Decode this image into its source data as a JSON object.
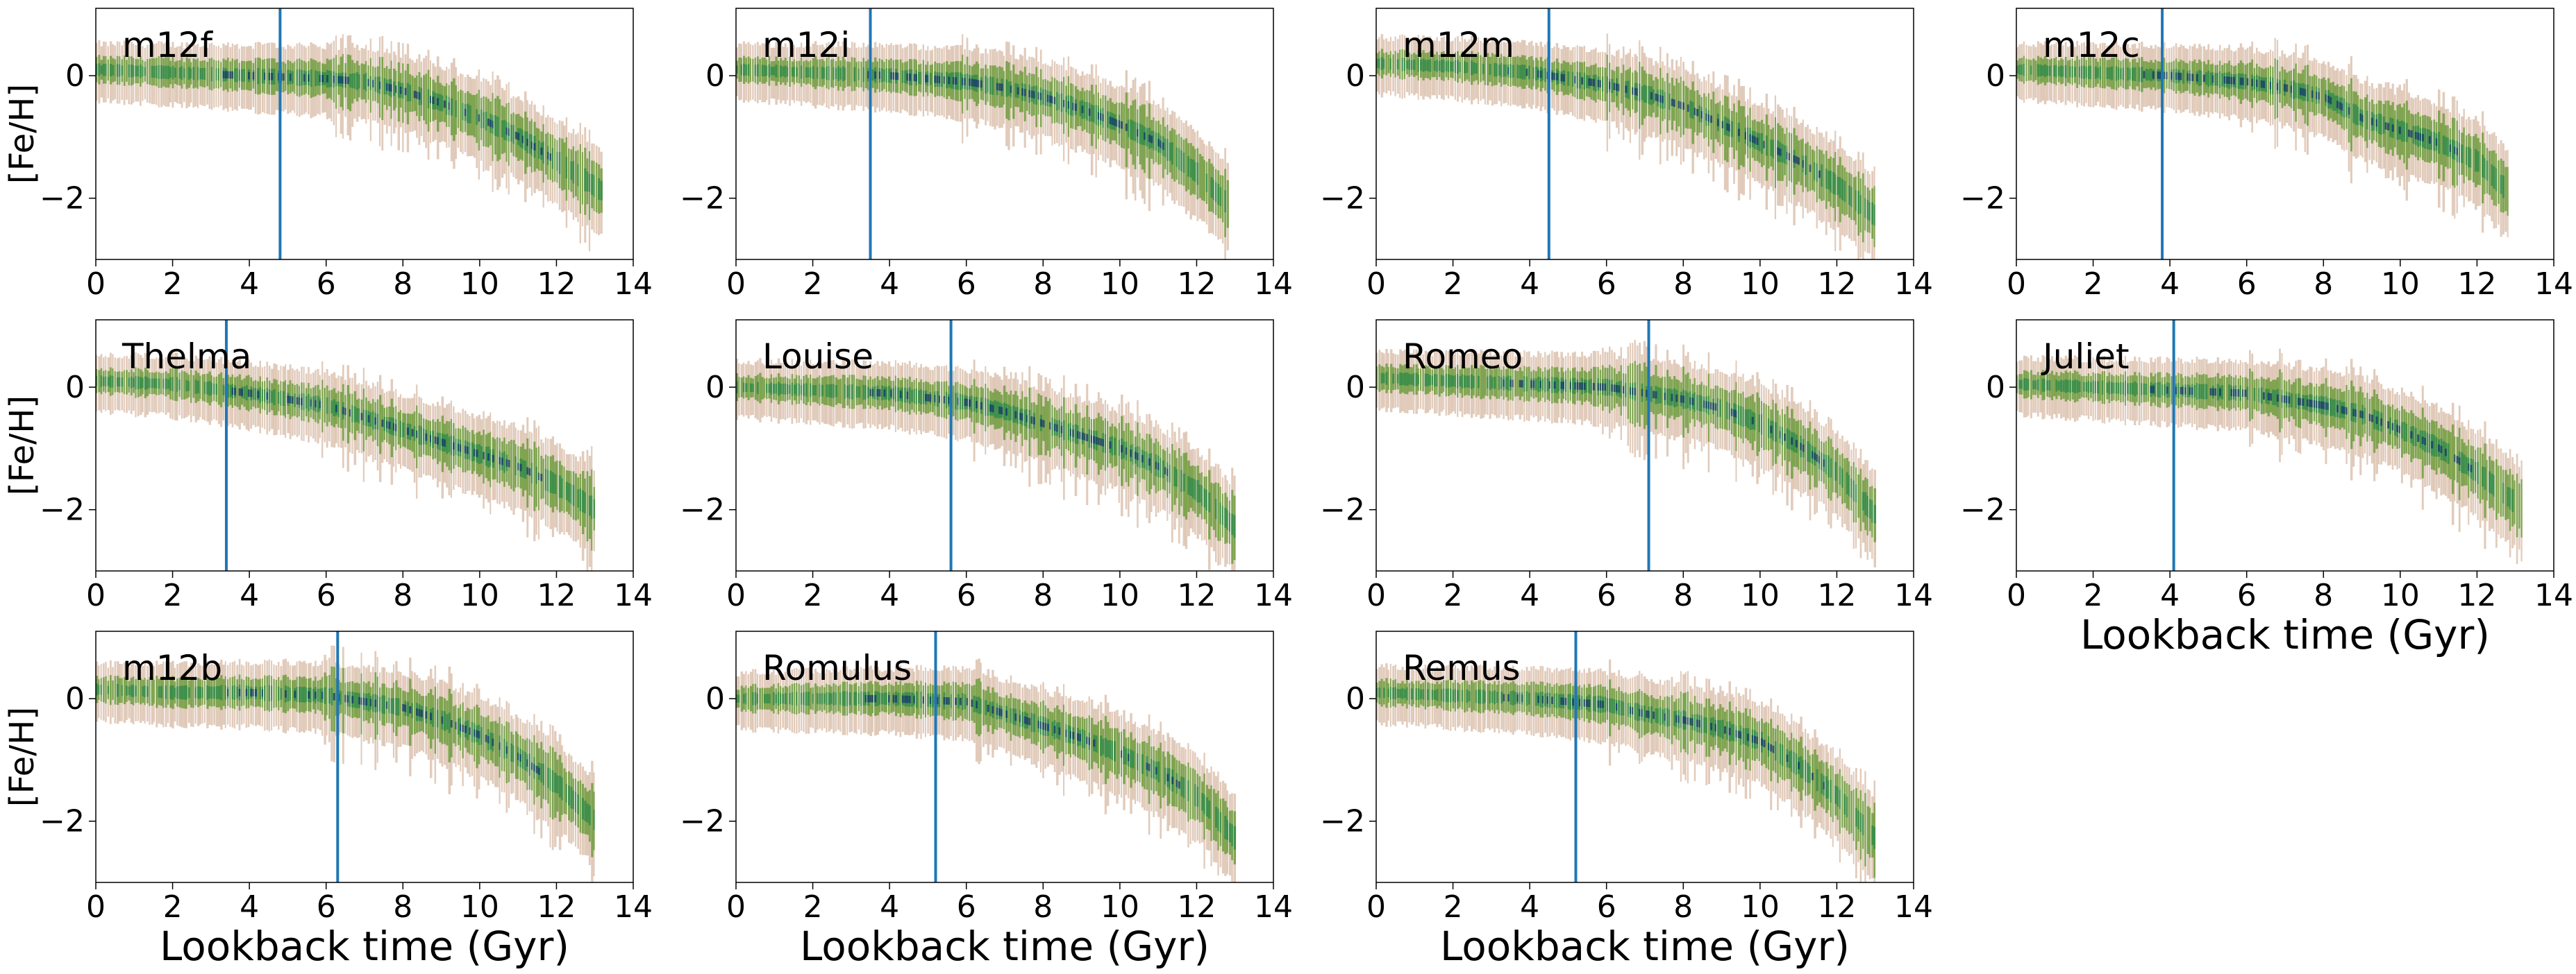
{
  "figure": {
    "xlabel": "Lookback time (Gyr)",
    "ylabel": "[Fe/H]"
  },
  "colors": {
    "cut_line": "#1f77b4",
    "density_low": "#c9a083",
    "density_mid": "#6f9e3e",
    "density_high": "#2e8b4a",
    "density_peak": "#123a6b"
  },
  "chart_data": [
    {
      "type": "heatmap",
      "title": "m12f",
      "xlabel": "",
      "ylabel": "[Fe/H]",
      "xlim": [
        0,
        14
      ],
      "ylim": [
        -3,
        1.1
      ],
      "xticks": [
        0,
        2,
        4,
        6,
        8,
        10,
        12,
        14
      ],
      "yticks": [
        -2,
        0
      ],
      "vline": 4.8,
      "ridge_x": [
        0,
        2,
        4,
        6,
        7,
        8,
        9,
        10,
        11,
        12,
        13.2
      ],
      "ridge_feh": [
        0.1,
        0.05,
        0.0,
        -0.05,
        -0.1,
        -0.25,
        -0.45,
        -0.7,
        -1.0,
        -1.4,
        -1.9
      ]
    },
    {
      "type": "heatmap",
      "title": "m12i",
      "xlabel": "",
      "ylabel": "",
      "xlim": [
        0,
        14
      ],
      "ylim": [
        -3,
        1.1
      ],
      "xticks": [
        0,
        2,
        4,
        6,
        8,
        10,
        12,
        14
      ],
      "yticks": [
        -2,
        0
      ],
      "vline": 3.5,
      "ridge_x": [
        0,
        2,
        4,
        6,
        7,
        8,
        9,
        10,
        11,
        12,
        12.8
      ],
      "ridge_feh": [
        0.1,
        0.05,
        0.0,
        -0.1,
        -0.2,
        -0.35,
        -0.55,
        -0.8,
        -1.1,
        -1.6,
        -2.1
      ]
    },
    {
      "type": "heatmap",
      "title": "m12m",
      "xlabel": "",
      "ylabel": "",
      "xlim": [
        0,
        14
      ],
      "ylim": [
        -3,
        1.1
      ],
      "xticks": [
        0,
        2,
        4,
        6,
        8,
        10,
        12,
        14
      ],
      "yticks": [
        -2,
        0
      ],
      "vline": 4.5,
      "ridge_x": [
        0,
        2,
        4,
        6,
        7,
        8,
        9,
        10,
        11,
        12,
        13
      ],
      "ridge_feh": [
        0.2,
        0.15,
        0.05,
        -0.15,
        -0.3,
        -0.5,
        -0.8,
        -1.1,
        -1.4,
        -1.8,
        -2.3
      ]
    },
    {
      "type": "heatmap",
      "title": "m12c",
      "xlabel": "",
      "ylabel": "",
      "xlim": [
        0,
        14
      ],
      "ylim": [
        -3,
        1.1
      ],
      "xticks": [
        0,
        2,
        4,
        6,
        8,
        10,
        12,
        14
      ],
      "yticks": [
        -2,
        0
      ],
      "vline": 3.8,
      "ridge_x": [
        0,
        2,
        4,
        6,
        7,
        8,
        9,
        10,
        11,
        12,
        12.8
      ],
      "ridge_feh": [
        0.1,
        0.05,
        0.0,
        -0.1,
        -0.2,
        -0.35,
        -0.7,
        -0.9,
        -1.1,
        -1.4,
        -1.9
      ]
    },
    {
      "type": "heatmap",
      "title": "Thelma",
      "xlabel": "",
      "ylabel": "[Fe/H]",
      "xlim": [
        0,
        14
      ],
      "ylim": [
        -3,
        1.1
      ],
      "xticks": [
        0,
        2,
        4,
        6,
        8,
        10,
        12,
        14
      ],
      "yticks": [
        -2,
        0
      ],
      "vline": 3.4,
      "ridge_x": [
        0,
        2,
        4,
        6,
        7,
        8,
        9,
        10,
        11,
        12,
        13
      ],
      "ridge_feh": [
        0.1,
        0.05,
        -0.1,
        -0.3,
        -0.5,
        -0.7,
        -0.9,
        -1.1,
        -1.3,
        -1.6,
        -2.0
      ]
    },
    {
      "type": "heatmap",
      "title": "Louise",
      "xlabel": "",
      "ylabel": "",
      "xlim": [
        0,
        14
      ],
      "ylim": [
        -3,
        1.1
      ],
      "xticks": [
        0,
        2,
        4,
        6,
        8,
        10,
        12,
        14
      ],
      "yticks": [
        -2,
        0
      ],
      "vline": 5.6,
      "ridge_x": [
        0,
        2,
        4,
        6,
        7,
        8,
        9,
        10,
        11,
        12,
        13
      ],
      "ridge_feh": [
        0.0,
        -0.05,
        -0.1,
        -0.25,
        -0.4,
        -0.6,
        -0.8,
        -1.0,
        -1.3,
        -1.7,
        -2.3
      ]
    },
    {
      "type": "heatmap",
      "title": "Romeo",
      "xlabel": "",
      "ylabel": "",
      "xlim": [
        0,
        14
      ],
      "ylim": [
        -3,
        1.1
      ],
      "xticks": [
        0,
        2,
        4,
        6,
        8,
        10,
        12,
        14
      ],
      "yticks": [
        -2,
        0
      ],
      "vline": 7.1,
      "ridge_x": [
        0,
        2,
        4,
        6,
        7,
        8,
        9,
        10,
        11,
        12,
        13
      ],
      "ridge_feh": [
        0.15,
        0.1,
        0.05,
        0.0,
        -0.1,
        -0.2,
        -0.35,
        -0.6,
        -0.95,
        -1.4,
        -2.1
      ]
    },
    {
      "type": "heatmap",
      "title": "Juliet",
      "xlabel": "Lookback time (Gyr)",
      "ylabel": "",
      "xlim": [
        0,
        14
      ],
      "ylim": [
        -3,
        1.1
      ],
      "xticks": [
        0,
        2,
        4,
        6,
        8,
        10,
        12,
        14
      ],
      "yticks": [
        -2,
        0
      ],
      "vline": 4.1,
      "ridge_x": [
        0,
        2,
        4,
        6,
        7,
        8,
        9,
        10,
        11,
        12,
        13.2
      ],
      "ridge_feh": [
        0.05,
        0.0,
        -0.05,
        -0.1,
        -0.2,
        -0.3,
        -0.45,
        -0.7,
        -1.0,
        -1.4,
        -2.0
      ]
    },
    {
      "type": "heatmap",
      "title": "m12b",
      "xlabel": "Lookback time (Gyr)",
      "ylabel": "[Fe/H]",
      "xlim": [
        0,
        14
      ],
      "ylim": [
        -3,
        1.1
      ],
      "xticks": [
        0,
        2,
        4,
        6,
        8,
        10,
        12,
        14
      ],
      "yticks": [
        -2,
        0
      ],
      "vline": 6.3,
      "ridge_x": [
        0,
        2,
        4,
        6,
        7,
        8,
        9,
        10,
        11,
        12,
        13
      ],
      "ridge_feh": [
        0.15,
        0.1,
        0.1,
        0.05,
        -0.05,
        -0.15,
        -0.35,
        -0.6,
        -0.95,
        -1.4,
        -2.0
      ]
    },
    {
      "type": "heatmap",
      "title": "Romulus",
      "xlabel": "Lookback time (Gyr)",
      "ylabel": "",
      "xlim": [
        0,
        14
      ],
      "ylim": [
        -3,
        1.1
      ],
      "xticks": [
        0,
        2,
        4,
        6,
        8,
        10,
        12,
        14
      ],
      "yticks": [
        -2,
        0
      ],
      "vline": 5.2,
      "ridge_x": [
        0,
        2,
        4,
        6,
        7,
        8,
        9,
        10,
        11,
        12,
        13
      ],
      "ridge_feh": [
        0.0,
        0.0,
        0.0,
        -0.05,
        -0.25,
        -0.45,
        -0.65,
        -0.9,
        -1.2,
        -1.6,
        -2.3
      ]
    },
    {
      "type": "heatmap",
      "title": "Remus",
      "xlabel": "Lookback time (Gyr)",
      "ylabel": "",
      "xlim": [
        0,
        14
      ],
      "ylim": [
        -3,
        1.1
      ],
      "xticks": [
        0,
        2,
        4,
        6,
        8,
        10,
        12,
        14
      ],
      "yticks": [
        -2,
        0
      ],
      "vline": 5.2,
      "ridge_x": [
        0,
        2,
        4,
        6,
        7,
        8,
        9,
        10,
        11,
        12,
        13
      ],
      "ridge_feh": [
        0.1,
        0.05,
        0.0,
        -0.1,
        -0.25,
        -0.35,
        -0.5,
        -0.7,
        -1.1,
        -1.6,
        -2.3
      ]
    }
  ]
}
